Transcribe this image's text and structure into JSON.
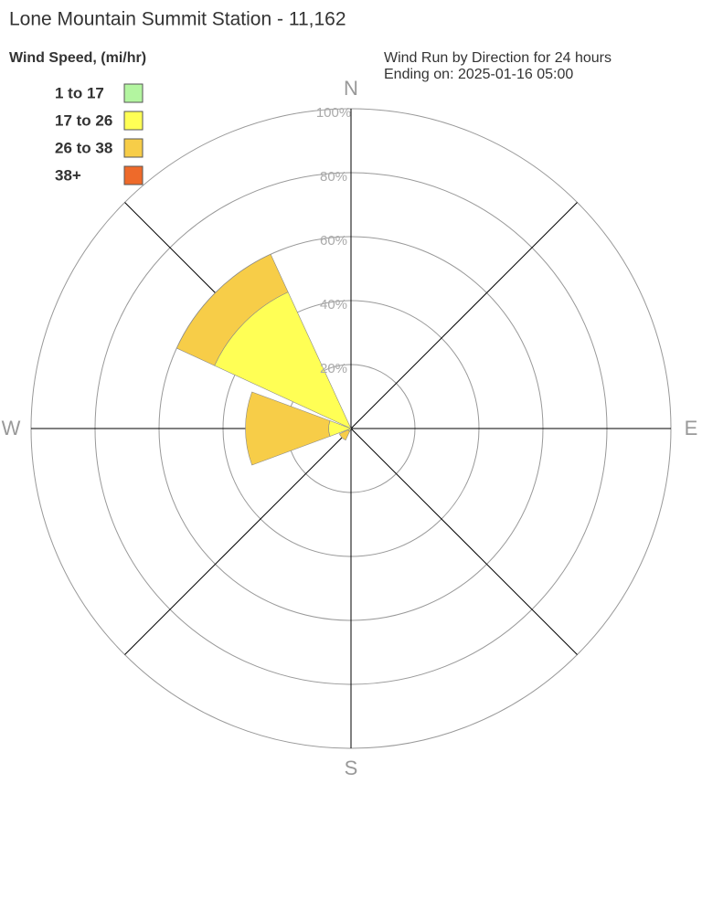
{
  "chart_data": {
    "type": "windrose",
    "title": "Lone Mountain Summit Station - 11,162",
    "legend_title": "Wind Speed, (mi/hr)",
    "subtitle": [
      "Wind Run by Direction for 24 hours",
      "Ending on: 2025-01-16 05:00"
    ],
    "categories": [
      "N",
      null,
      "E",
      null,
      "S",
      null,
      "W",
      null
    ],
    "series": [
      {
        "name": "1 to 17",
        "color": "#b3f5a0",
        "values": [
          0,
          0,
          0,
          0,
          0,
          0,
          0,
          0
        ]
      },
      {
        "name": "17 to 26",
        "color": "#ffff55",
        "values": [
          0,
          0,
          0,
          0,
          0,
          1,
          7,
          47
        ]
      },
      {
        "name": "26 to 38",
        "color": "#f7cd48",
        "values": [
          0,
          0,
          0,
          0,
          0,
          3,
          26,
          13
        ]
      },
      {
        "name": "38+",
        "color": "#ee6a2a",
        "values": [
          0,
          0,
          0,
          0,
          0,
          0,
          0,
          0
        ]
      }
    ],
    "rlim": [
      0,
      100
    ],
    "rticks": [
      {
        "value": 20,
        "label": "20%"
      },
      {
        "value": 40,
        "label": "40%"
      },
      {
        "value": 60,
        "label": "60%"
      },
      {
        "value": 80,
        "label": "80%"
      },
      {
        "value": 100,
        "label": "100%"
      }
    ]
  }
}
